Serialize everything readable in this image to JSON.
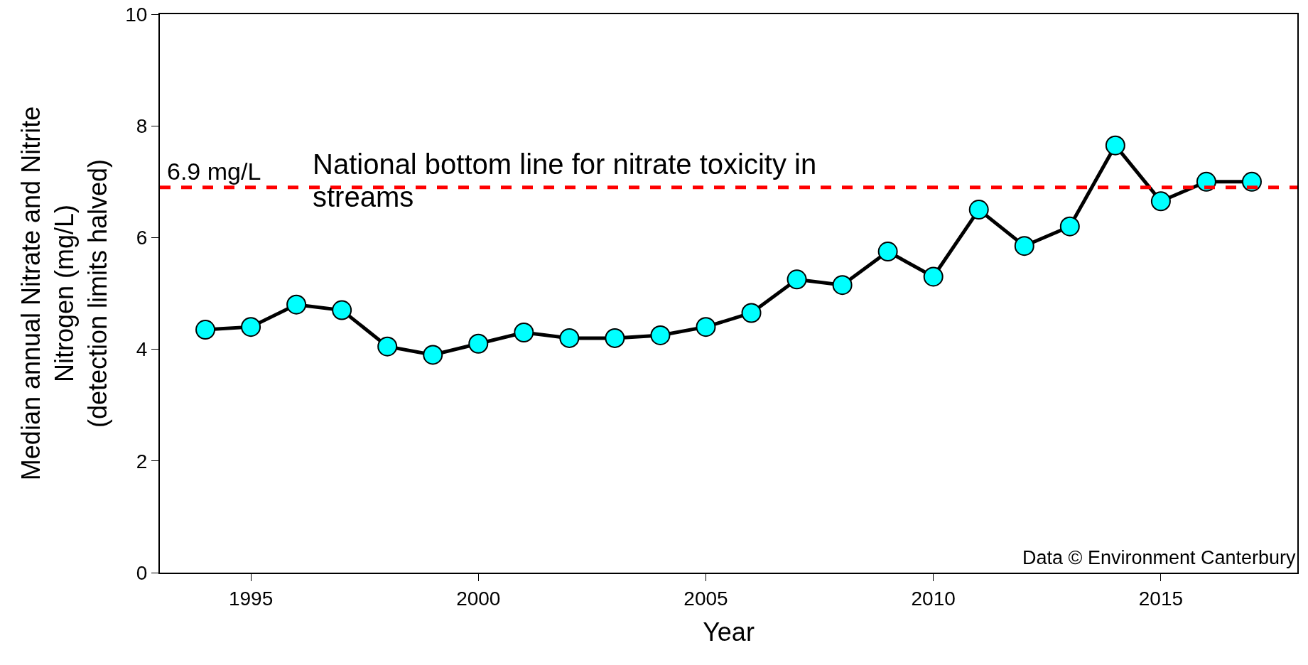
{
  "chart_data": {
    "type": "line",
    "xlabel": "Year",
    "ylabel": "Median annual Nitrate and Nitrite Nitrogen (mg/L) (detection limits halved)",
    "x": [
      1994,
      1995,
      1996,
      1997,
      1998,
      1999,
      2000,
      2001,
      2002,
      2003,
      2004,
      2005,
      2006,
      2007,
      2008,
      2009,
      2010,
      2011,
      2012,
      2013,
      2014,
      2015,
      2016,
      2017
    ],
    "series": [
      {
        "color": "#000000",
        "values": [
          4.35,
          4.4,
          4.8,
          4.7,
          4.05,
          3.9,
          4.1,
          4.3,
          4.2,
          4.2,
          4.25,
          4.4,
          4.65,
          5.25,
          5.15,
          5.75,
          5.3,
          6.5,
          5.85,
          6.2,
          7.65,
          6.65,
          7.0,
          7.0
        ]
      }
    ],
    "marker": "circle",
    "line_style": "solid",
    "grid": false,
    "xlim": [
      1993,
      2018
    ],
    "xticks": [
      1995,
      2000,
      2005,
      2010,
      2015
    ],
    "ylim": [
      0,
      10
    ],
    "yticks": [
      0,
      2,
      4,
      6,
      8,
      10
    ],
    "ref_lines": [
      {
        "axis": "y",
        "value": 6.9,
        "label": "6.9 mg/L",
        "color": "#ff0000",
        "line_style": "dashed"
      }
    ],
    "annotations": [
      "National bottom line for nitrate toxicity in streams",
      "Data © Environment Canterbury"
    ]
  }
}
